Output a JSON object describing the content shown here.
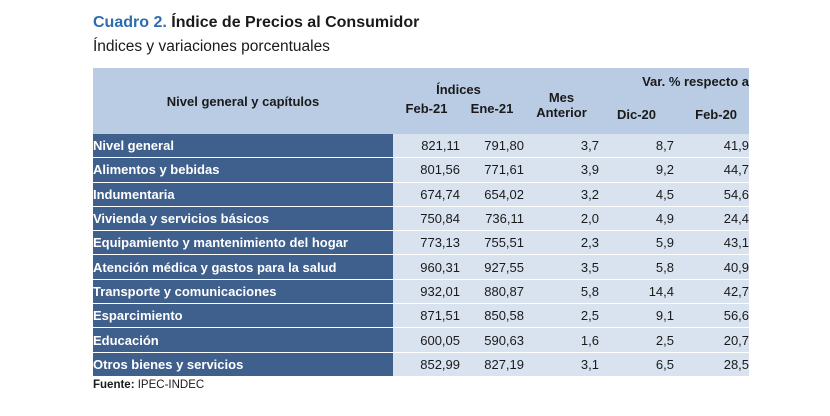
{
  "title": {
    "prefix": "Cuadro 2.",
    "text": "Índice de Precios al Consumidor"
  },
  "subtitle": "Índices y variaciones porcentuales",
  "table": {
    "header": {
      "nivel": "Nivel general y capítulos",
      "indices": "Índices",
      "var": "Var. % respecto a",
      "feb21": "Feb-21",
      "ene21": "Ene-21",
      "mes_line1": "Mes",
      "mes_line2": "Anterior",
      "dic20": "Dic-20",
      "feb20": "Feb-20"
    },
    "rows": [
      {
        "label": "Nivel general",
        "feb21": "821,11",
        "ene21": "791,80",
        "mes": "3,7",
        "dic20": "8,7",
        "feb20": "41,9"
      },
      {
        "label": "Alimentos y bebidas",
        "feb21": "801,56",
        "ene21": "771,61",
        "mes": "3,9",
        "dic20": "9,2",
        "feb20": "44,7"
      },
      {
        "label": "Indumentaria",
        "feb21": "674,74",
        "ene21": "654,02",
        "mes": "3,2",
        "dic20": "4,5",
        "feb20": "54,6"
      },
      {
        "label": "Vivienda y servicios básicos",
        "feb21": "750,84",
        "ene21": "736,11",
        "mes": "2,0",
        "dic20": "4,9",
        "feb20": "24,4"
      },
      {
        "label": "Equipamiento y mantenimiento del hogar",
        "feb21": "773,13",
        "ene21": "755,51",
        "mes": "2,3",
        "dic20": "5,9",
        "feb20": "43,1"
      },
      {
        "label": "Atención médica y gastos para la salud",
        "feb21": "960,31",
        "ene21": "927,55",
        "mes": "3,5",
        "dic20": "5,8",
        "feb20": "40,9"
      },
      {
        "label": "Transporte y comunicaciones",
        "feb21": "932,01",
        "ene21": "880,87",
        "mes": "5,8",
        "dic20": "14,4",
        "feb20": "42,7"
      },
      {
        "label": "Esparcimiento",
        "feb21": "871,51",
        "ene21": "850,58",
        "mes": "2,5",
        "dic20": "9,1",
        "feb20": "56,6"
      },
      {
        "label": "Educación",
        "feb21": "600,05",
        "ene21": "590,63",
        "mes": "1,6",
        "dic20": "2,5",
        "feb20": "20,7"
      },
      {
        "label": "Otros bienes y servicios",
        "feb21": "852,99",
        "ene21": "827,19",
        "mes": "3,1",
        "dic20": "6,5",
        "feb20": "28,5"
      }
    ]
  },
  "footer": {
    "label": "Fuente:",
    "text": "IPEC-INDEC"
  },
  "colors": {
    "title_accent": "#2e6bb0",
    "header_bg": "#b9cce4",
    "label_bg": "#3f5f8d",
    "value_bg": "#d9e3f0"
  }
}
